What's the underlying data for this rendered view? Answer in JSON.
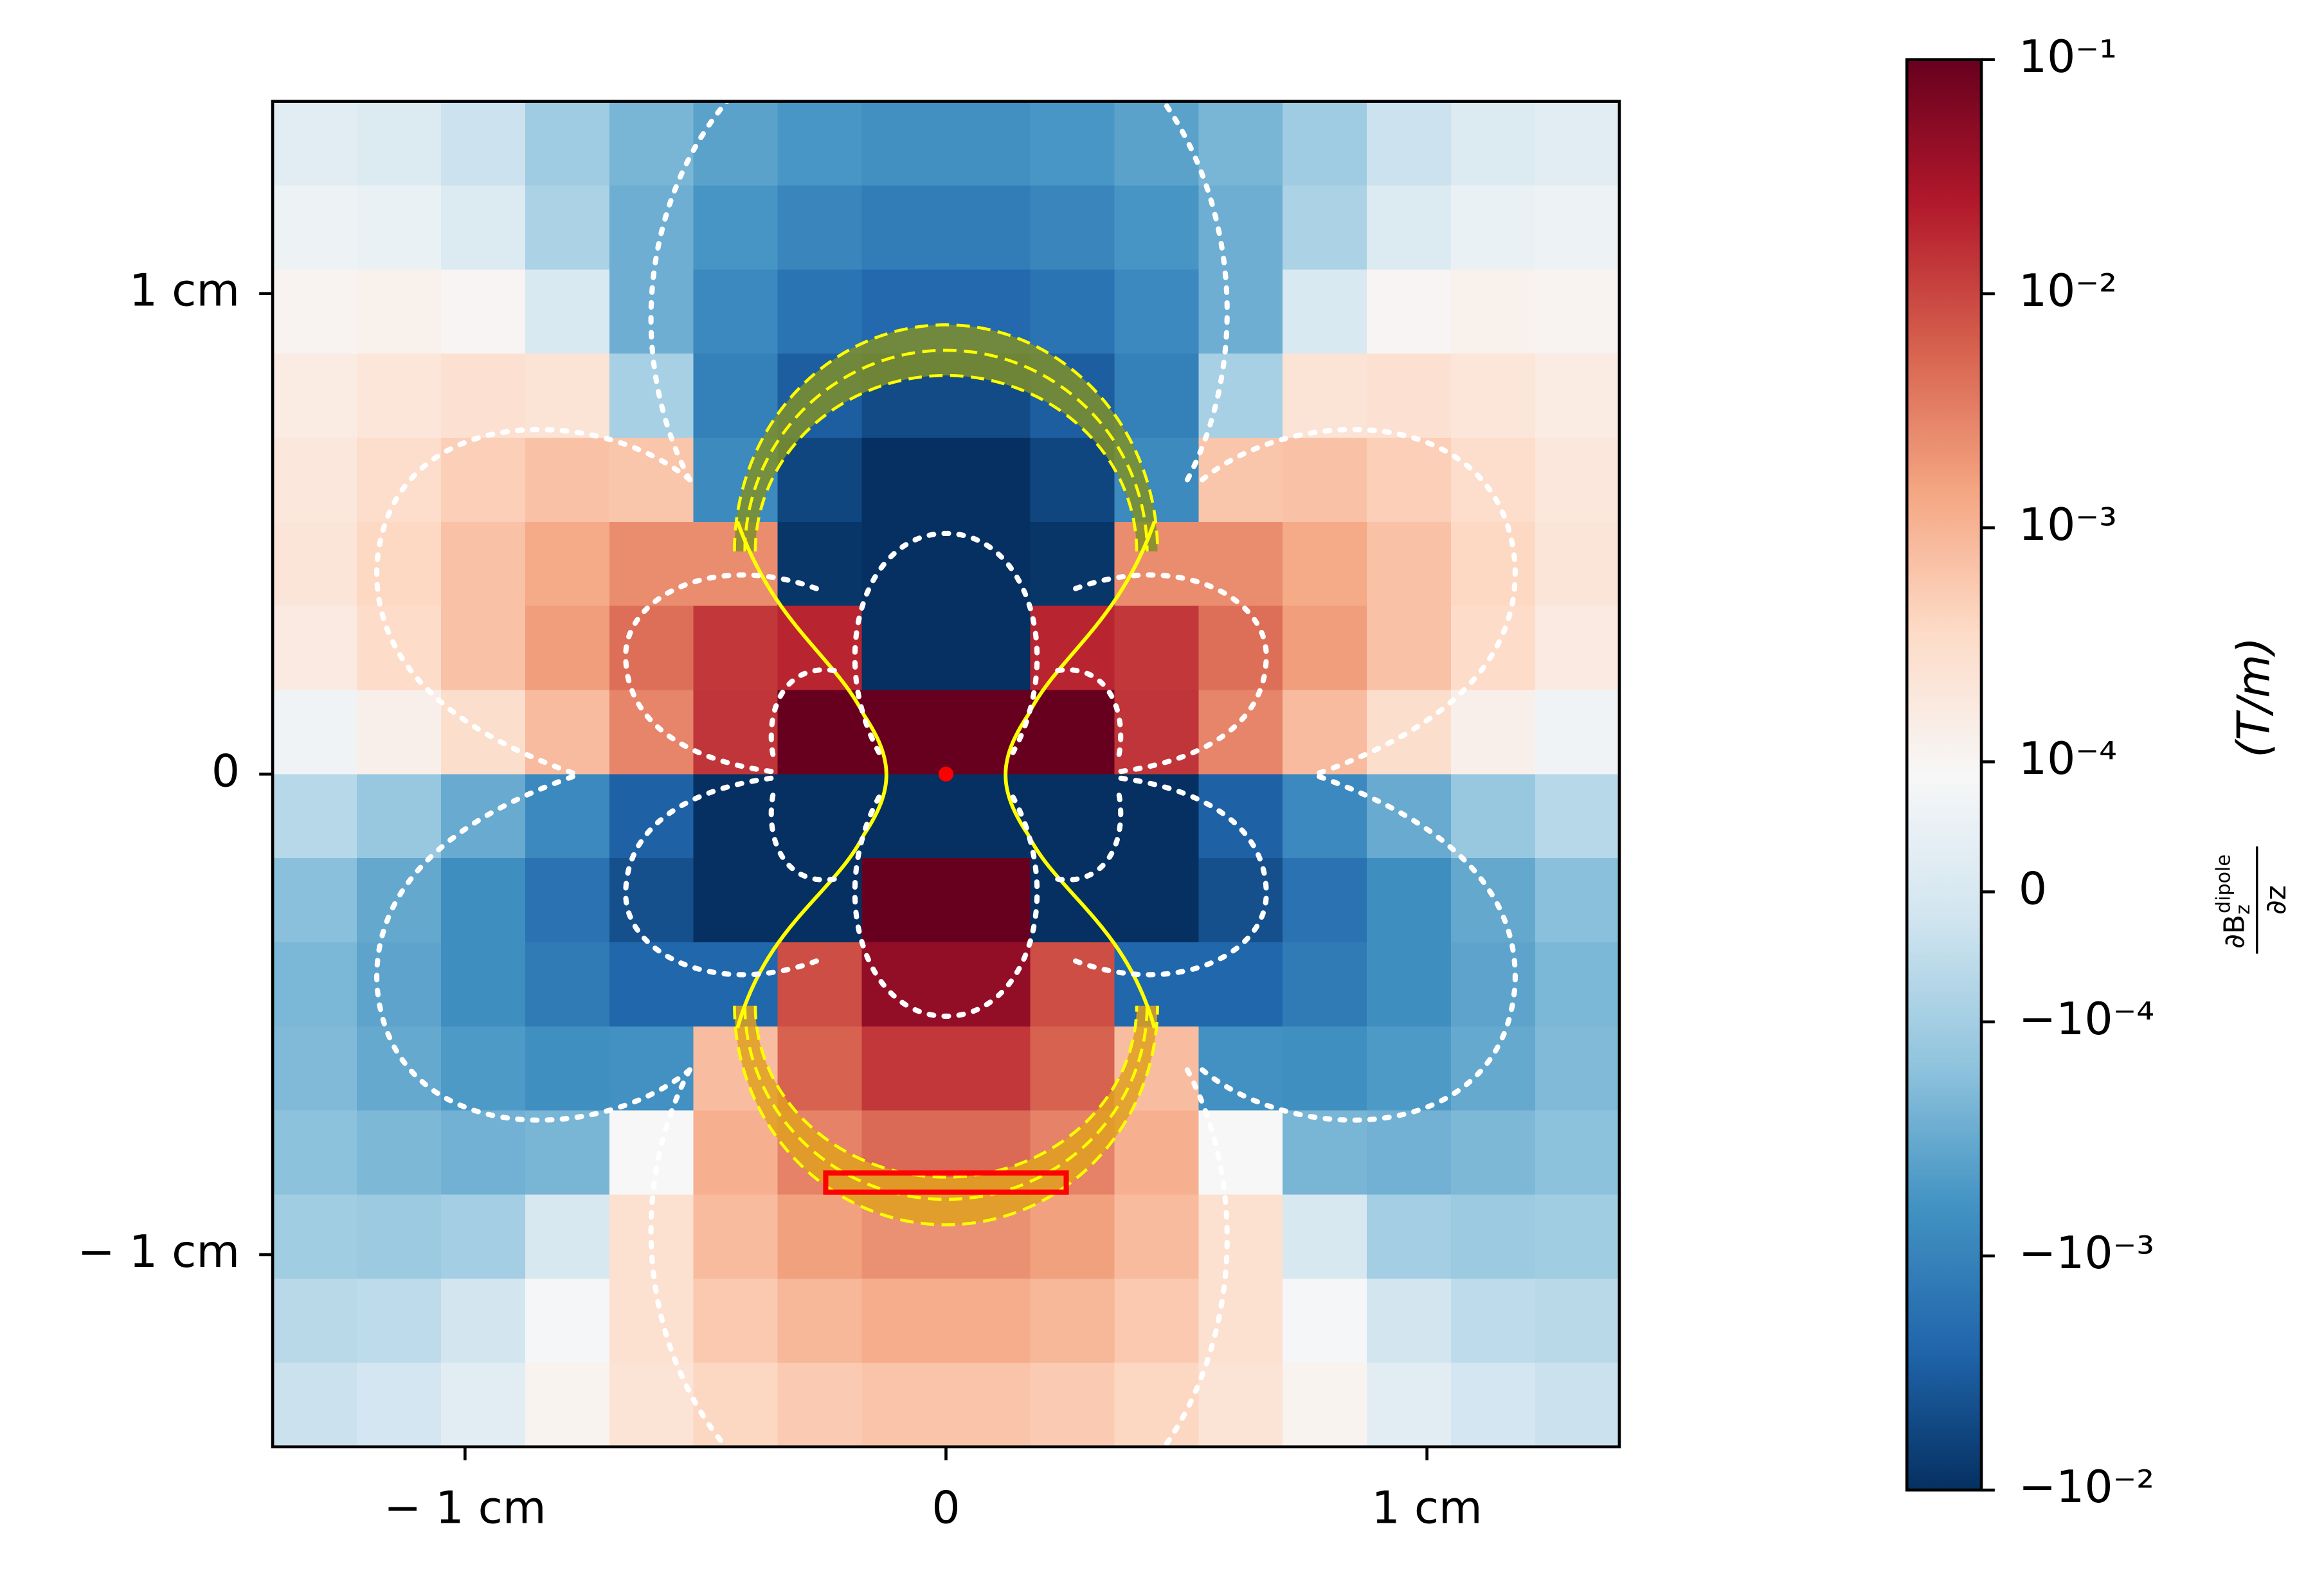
{
  "chart_data": {
    "type": "heatmap",
    "xlim": [
      -1.4,
      1.4
    ],
    "ylim": [
      -1.4,
      1.4
    ],
    "xticks": [
      {
        "value": -1,
        "label": "− 1 cm"
      },
      0,
      {
        "value": 1,
        "label": "1 cm"
      }
    ],
    "yticks": [
      {
        "value": -1,
        "label": "− 1 cm"
      },
      0,
      {
        "value": 1,
        "label": "1 cm"
      }
    ],
    "x": [
      -1.3125,
      -1.1375,
      -0.9625,
      -0.7875,
      -0.6125,
      -0.4375,
      -0.2625,
      -0.0875,
      0.0875,
      0.2625,
      0.4375,
      0.6125,
      0.7875,
      0.9625,
      1.1375,
      1.3125
    ],
    "y": [
      1.3125,
      1.1375,
      0.9625,
      0.7875,
      0.6125,
      0.4375,
      0.2625,
      0.0875,
      -0.0875,
      -0.2625,
      -0.4375,
      -0.6125,
      -0.7875,
      -0.9625,
      -1.1375,
      -1.3125
    ],
    "z": [
      [
        3e-05,
        1.2e-05,
        -2.9e-05,
        -0.00011,
        -0.00023,
        -0.00039,
        -0.00055,
        -0.00066,
        -0.00066,
        -0.00055,
        -0.00039,
        -0.00023,
        -0.00011,
        -2.9e-05,
        1.2e-05,
        3e-05
      ],
      [
        6.2e-05,
        5.3e-05,
        1.3e-05,
        -8.5e-05,
        -0.00028,
        -0.00057,
        -0.00092,
        -0.0012,
        -0.0012,
        -0.00092,
        -0.00057,
        -0.00028,
        -8.5e-05,
        1.3e-05,
        5.3e-05,
        6.2e-05
      ],
      [
        0.000105,
        0.00012,
        0.0001,
        2e-06,
        -0.00028,
        -0.00083,
        -0.0016,
        -0.0022,
        -0.0022,
        -0.0016,
        -0.00083,
        -0.00028,
        2e-06,
        0.0001,
        0.00012,
        0.000105
      ],
      [
        0.00016,
        0.00021,
        0.00026,
        0.00023,
        -9.1e-05,
        -0.0011,
        -0.003,
        -0.0049,
        -0.0049,
        -0.003,
        -0.0011,
        -9.1e-05,
        0.00023,
        0.00026,
        0.00021,
        0.00016
      ],
      [
        0.0002,
        0.00032,
        0.00049,
        0.00069,
        0.00063,
        -0.00079,
        -0.0057,
        -0.013,
        -0.013,
        -0.0057,
        -0.00079,
        0.00063,
        0.00069,
        0.00049,
        0.00032,
        0.0002
      ],
      [
        0.00022,
        0.00038,
        0.00071,
        0.0013,
        0.0024,
        0.0024,
        -0.0086,
        -0.045,
        -0.045,
        -0.0086,
        0.0024,
        0.0024,
        0.0013,
        0.00071,
        0.00038,
        0.00022
      ],
      [
        0.00017,
        0.00033,
        0.0007,
        0.0017,
        0.0044,
        0.013,
        0.019,
        -0.24,
        -0.24,
        0.019,
        0.013,
        0.0044,
        0.0017,
        0.0007,
        0.00033,
        0.00017
      ],
      [
        6.6e-05,
        0.00013,
        0.00031,
        0.00082,
        0.0028,
        0.014,
        0.14,
        1.5,
        1.5,
        0.14,
        0.014,
        0.0028,
        0.00082,
        0.00031,
        0.00013,
        6.6e-05
      ],
      [
        -6.6e-05,
        -0.00013,
        -0.00031,
        -0.00082,
        -0.0028,
        -0.014,
        -0.14,
        -1.5,
        -1.5,
        -0.14,
        -0.014,
        -0.0028,
        -0.00082,
        -0.00031,
        -0.00013,
        -6.6e-05
      ],
      [
        -0.00017,
        -0.00033,
        -0.0007,
        -0.0017,
        -0.0044,
        -0.013,
        -0.019,
        0.24,
        0.24,
        -0.019,
        -0.013,
        -0.0044,
        -0.0017,
        -0.0007,
        -0.00033,
        -0.00017
      ],
      [
        -0.00022,
        -0.00038,
        -0.00071,
        -0.0013,
        -0.0024,
        -0.0024,
        0.0086,
        0.045,
        0.045,
        0.0086,
        -0.0024,
        -0.0024,
        -0.0013,
        -0.00071,
        -0.00038,
        -0.00022
      ],
      [
        -0.0002,
        -0.00032,
        -0.00049,
        -0.00069,
        -0.00063,
        0.00079,
        0.0057,
        0.013,
        0.013,
        0.0057,
        0.00079,
        -0.00063,
        -0.00069,
        -0.00049,
        -0.00032,
        -0.0002
      ],
      [
        -0.00016,
        -0.00021,
        -0.00026,
        -0.00023,
        9.1e-05,
        0.0011,
        0.003,
        0.0049,
        0.0049,
        0.003,
        0.0011,
        9.1e-05,
        -0.00023,
        -0.00026,
        -0.00021,
        -0.00016
      ],
      [
        -0.000105,
        -0.00012,
        -0.0001,
        -2e-06,
        0.00028,
        0.00083,
        0.0016,
        0.0022,
        0.0022,
        0.0016,
        0.00083,
        0.00028,
        -2e-06,
        -0.0001,
        -0.00012,
        -0.000105
      ],
      [
        -6.2e-05,
        -5.3e-05,
        -1.3e-05,
        8.5e-05,
        0.00028,
        0.00057,
        0.00092,
        0.0012,
        0.0012,
        0.00092,
        0.00057,
        0.00028,
        8.5e-05,
        -1.3e-05,
        -5.3e-05,
        -6.2e-05
      ],
      [
        -3e-05,
        -1.2e-05,
        2.9e-05,
        0.00011,
        0.00023,
        0.00039,
        0.00055,
        0.00066,
        0.00066,
        0.00055,
        0.00039,
        0.00023,
        0.00011,
        2.9e-05,
        -1.2e-05,
        -3e-05
      ]
    ],
    "source": {
      "x": 0,
      "y": 0,
      "color": "#ff0000"
    },
    "sensor": {
      "x": [
        -0.25,
        0.25
      ],
      "y": [
        -0.87,
        -0.83
      ],
      "color": "#ff0000"
    },
    "colorbar": {
      "scale": "symlog",
      "linthresh": 0.0001,
      "linscale": 0.5,
      "lim": [
        -0.01,
        0.1
      ],
      "colormap": [
        "#053061",
        "#2166ac",
        "#4393c3",
        "#92c5de",
        "#d1e5f0",
        "#f7f7f7",
        "#fddbc7",
        "#f4a582",
        "#d6604d",
        "#b2182b",
        "#67001f"
      ],
      "ticks": [
        {
          "value": 0.1,
          "label": "10⁻¹"
        },
        {
          "value": 0.01,
          "label": "10⁻²"
        },
        {
          "value": 0.001,
          "label": "10⁻³"
        },
        {
          "value": 0.0001,
          "label": "10⁻⁴"
        },
        0,
        {
          "value": -0.0001,
          "label": "−10⁻⁴"
        },
        {
          "value": -0.001,
          "label": "−10⁻³"
        },
        {
          "value": -0.01,
          "label": "−10⁻²"
        }
      ],
      "label": {
        "numerator": "∂B",
        "sub": "z",
        "sup": "dipole",
        "denominator": "∂z",
        "unit": "(T/m)"
      }
    }
  }
}
